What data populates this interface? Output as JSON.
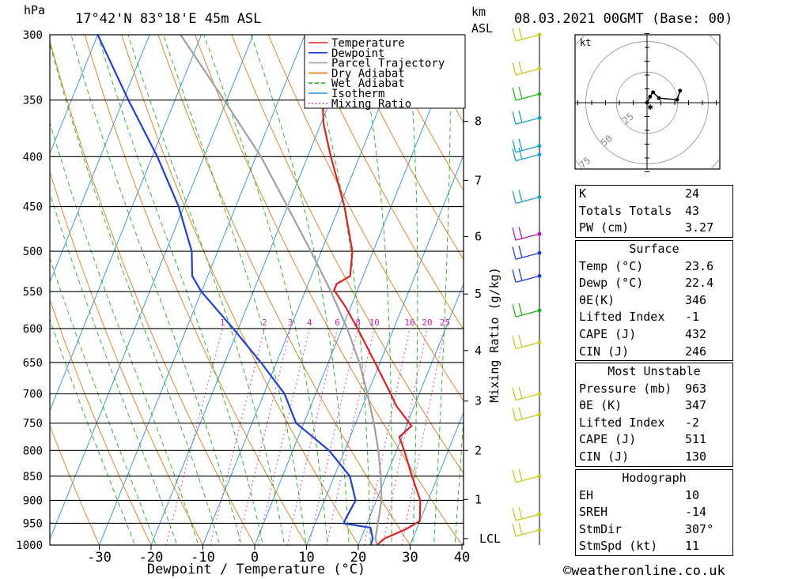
{
  "header": {
    "location": "17°42'N  83°18'E  45m  ASL",
    "datetime": "08.03.2021  00GMT  (Base: 00)",
    "pressure_unit": "hPa",
    "height_unit_line1": "km",
    "height_unit_line2": "ASL"
  },
  "footer": {
    "copyright": "©weatheronline.co.uk"
  },
  "chart_data": {
    "type": "line",
    "title": "",
    "xlabel": "Dewpoint / Temperature (°C)",
    "ylabel": "hPa",
    "right_axis_label": "Mixing Ratio (g/kg)",
    "xlim": [
      -40,
      40
    ],
    "ylim": [
      1000,
      300
    ],
    "x_ticks": [
      -30,
      -20,
      -10,
      0,
      10,
      20,
      30,
      40
    ],
    "pressure_levels": [
      300,
      350,
      400,
      450,
      500,
      550,
      600,
      650,
      700,
      750,
      800,
      850,
      900,
      950,
      1000
    ],
    "height_km_ticks": [
      {
        "label": "8",
        "p": 368
      },
      {
        "label": "7",
        "p": 423
      },
      {
        "label": "6",
        "p": 483
      },
      {
        "label": "5",
        "p": 553
      },
      {
        "label": "4",
        "p": 632
      },
      {
        "label": "3",
        "p": 712
      },
      {
        "label": "2",
        "p": 800
      },
      {
        "label": "1",
        "p": 898
      },
      {
        "label": "LCL",
        "p": 985
      }
    ],
    "mixing_ratio_labels": [
      "1",
      "2",
      "3",
      "4",
      "6",
      "8",
      "10",
      "16",
      "20",
      "25"
    ],
    "legend": [
      {
        "name": "Temperature",
        "color": "#e02020"
      },
      {
        "name": "Dewpoint",
        "color": "#1e3fd9"
      },
      {
        "name": "Parcel Trajectory",
        "color": "#a0a0a0"
      },
      {
        "name": "Dry Adiabat",
        "color": "#e07a10"
      },
      {
        "name": "Wet Adiabat",
        "color": "#18b418"
      },
      {
        "name": "Isotherm",
        "color": "#2a8fe0"
      },
      {
        "name": "Mixing Ratio",
        "color": "#d81ec0"
      }
    ],
    "series": [
      {
        "name": "Temperature",
        "color": "#e02020",
        "points": [
          {
            "p": 1000,
            "t": 23.6
          },
          {
            "p": 985,
            "t": 24.5
          },
          {
            "p": 963,
            "t": 28
          },
          {
            "p": 945,
            "t": 30
          },
          {
            "p": 900,
            "t": 28.5
          },
          {
            "p": 850,
            "t": 25
          },
          {
            "p": 800,
            "t": 21.5
          },
          {
            "p": 775,
            "t": 19.5
          },
          {
            "p": 755,
            "t": 21
          },
          {
            "p": 720,
            "t": 16.5
          },
          {
            "p": 700,
            "t": 14.5
          },
          {
            "p": 650,
            "t": 9
          },
          {
            "p": 600,
            "t": 3
          },
          {
            "p": 570,
            "t": -1
          },
          {
            "p": 548,
            "t": -4.5
          },
          {
            "p": 540,
            "t": -4.5
          },
          {
            "p": 530,
            "t": -2.5
          },
          {
            "p": 500,
            "t": -4
          },
          {
            "p": 450,
            "t": -9
          },
          {
            "p": 400,
            "t": -15.5
          },
          {
            "p": 370,
            "t": -19.5
          },
          {
            "p": 355,
            "t": -21
          }
        ]
      },
      {
        "name": "Dewpoint",
        "color": "#1e3fd9",
        "points": [
          {
            "p": 1000,
            "t": 22.4
          },
          {
            "p": 985,
            "t": 22.3
          },
          {
            "p": 960,
            "t": 21
          },
          {
            "p": 950,
            "t": 15.5
          },
          {
            "p": 940,
            "t": 15.5
          },
          {
            "p": 900,
            "t": 16
          },
          {
            "p": 850,
            "t": 13
          },
          {
            "p": 800,
            "t": 7
          },
          {
            "p": 770,
            "t": 2
          },
          {
            "p": 750,
            "t": -1.5
          },
          {
            "p": 700,
            "t": -6
          },
          {
            "p": 650,
            "t": -13
          },
          {
            "p": 600,
            "t": -21
          },
          {
            "p": 550,
            "t": -30
          },
          {
            "p": 530,
            "t": -33
          },
          {
            "p": 500,
            "t": -35
          },
          {
            "p": 450,
            "t": -41
          },
          {
            "p": 400,
            "t": -49
          },
          {
            "p": 350,
            "t": -59
          },
          {
            "p": 300,
            "t": -70
          }
        ]
      },
      {
        "name": "Parcel Trajectory",
        "color": "#a0a0a0",
        "points": [
          {
            "p": 1000,
            "t": 23.6
          },
          {
            "p": 985,
            "t": 22.8
          },
          {
            "p": 900,
            "t": 21
          },
          {
            "p": 850,
            "t": 19
          },
          {
            "p": 800,
            "t": 16.5
          },
          {
            "p": 750,
            "t": 13.5
          },
          {
            "p": 700,
            "t": 10
          },
          {
            "p": 650,
            "t": 6
          },
          {
            "p": 600,
            "t": 1
          },
          {
            "p": 550,
            "t": -5
          },
          {
            "p": 500,
            "t": -12
          },
          {
            "p": 450,
            "t": -20
          },
          {
            "p": 400,
            "t": -29
          },
          {
            "p": 350,
            "t": -40.5
          },
          {
            "p": 300,
            "t": -54
          }
        ]
      }
    ],
    "wind_barbs": [
      {
        "p": 300,
        "color": "#c8c820"
      },
      {
        "p": 325,
        "color": "#c8c820"
      },
      {
        "p": 345,
        "color": "#20b420"
      },
      {
        "p": 365,
        "color": "#18a0d0"
      },
      {
        "p": 390,
        "color": "#18a0d0"
      },
      {
        "p": 398,
        "color": "#18a0d0"
      },
      {
        "p": 440,
        "color": "#18a0d0"
      },
      {
        "p": 480,
        "color": "#b418b4"
      },
      {
        "p": 502,
        "color": "#1e3fd9"
      },
      {
        "p": 530,
        "color": "#1e3fd9"
      },
      {
        "p": 575,
        "color": "#18b418"
      },
      {
        "p": 620,
        "color": "#c8c820"
      },
      {
        "p": 700,
        "color": "#c8c820"
      },
      {
        "p": 735,
        "color": "#c8c820"
      },
      {
        "p": 850,
        "color": "#c8c820"
      },
      {
        "p": 930,
        "color": "#c8c820"
      },
      {
        "p": 965,
        "color": "#c8c820"
      }
    ],
    "hodograph": {
      "unit_label": "kt",
      "ring_labels": [
        "25",
        "50",
        "75"
      ],
      "trace_uv": [
        [
          0,
          0
        ],
        [
          2,
          4
        ],
        [
          4,
          7
        ],
        [
          8,
          3
        ],
        [
          20,
          2
        ],
        [
          22,
          8
        ]
      ]
    }
  },
  "indices": {
    "general": [
      {
        "label": "K",
        "value": "24"
      },
      {
        "label": "Totals Totals",
        "value": "43"
      },
      {
        "label": "PW (cm)",
        "value": "3.27"
      }
    ],
    "surface": {
      "title": "Surface",
      "rows": [
        {
          "label": "Temp (°C)",
          "value": "23.6"
        },
        {
          "label": "Dewp (°C)",
          "value": "22.4"
        },
        {
          "label": "θE(K)",
          "value": "346"
        },
        {
          "label": "Lifted Index",
          "value": "-1"
        },
        {
          "label": "CAPE (J)",
          "value": "432"
        },
        {
          "label": "CIN (J)",
          "value": "246"
        }
      ]
    },
    "most_unstable": {
      "title": "Most Unstable",
      "rows": [
        {
          "label": "Pressure (mb)",
          "value": "963"
        },
        {
          "label": "θE (K)",
          "value": "347"
        },
        {
          "label": "Lifted Index",
          "value": "-2"
        },
        {
          "label": "CAPE (J)",
          "value": "511"
        },
        {
          "label": "CIN (J)",
          "value": "130"
        }
      ]
    },
    "hodograph": {
      "title": "Hodograph",
      "rows": [
        {
          "label": "EH",
          "value": "10"
        },
        {
          "label": "SREH",
          "value": "-14"
        },
        {
          "label": "StmDir",
          "value": "307°"
        },
        {
          "label": "StmSpd (kt)",
          "value": "11"
        }
      ]
    }
  }
}
